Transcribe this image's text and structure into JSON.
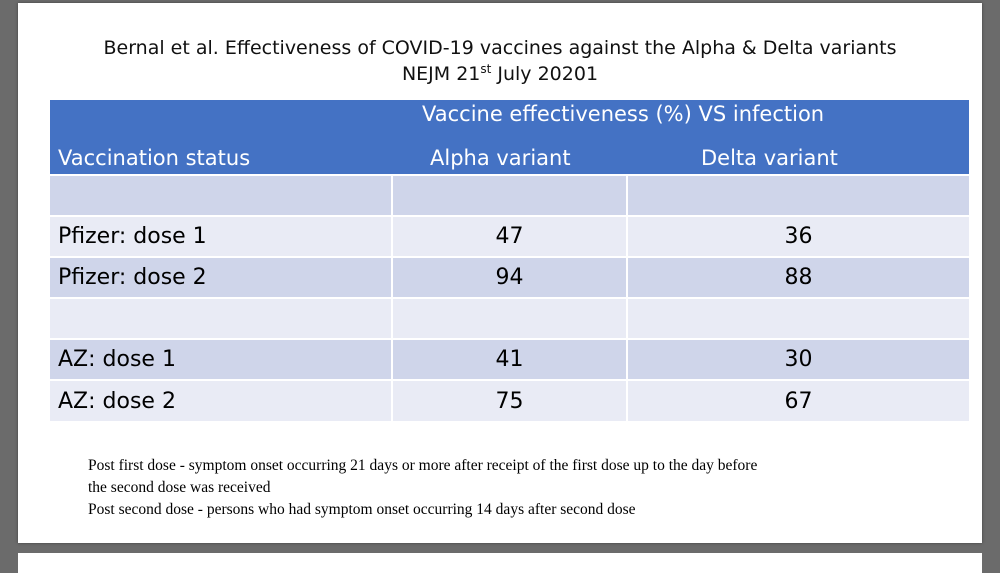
{
  "title": {
    "line1": "Bernal et al. Effectiveness of COVID-19 vaccines against the Alpha & Delta variants",
    "line2_prefix": "NEJM 21",
    "line2_sup": "st",
    "line2_suffix": " July 20201"
  },
  "table": {
    "header": {
      "status": "Vaccination status",
      "span": "Vaccine effectiveness (%) VS infection",
      "alpha": "Alpha variant",
      "delta": "Delta variant"
    },
    "rows": [
      {
        "status": "",
        "alpha": "",
        "delta": ""
      },
      {
        "status": "Pfizer: dose 1",
        "alpha": "47",
        "delta": "36"
      },
      {
        "status": "Pfizer: dose 2",
        "alpha": "94",
        "delta": "88"
      },
      {
        "status": "",
        "alpha": "",
        "delta": ""
      },
      {
        "status": "AZ: dose 1",
        "alpha": "41",
        "delta": "30"
      },
      {
        "status": "AZ: dose 2",
        "alpha": "75",
        "delta": "67"
      }
    ]
  },
  "notes": {
    "line1": "Post first dose - symptom onset occurring 21 days or more after receipt of the first dose up to the day before",
    "line2": "the second dose was received",
    "line3": "Post second dose - persons who had symptom onset occurring 14 days after second dose"
  },
  "colors": {
    "header_bg": "#4472c4",
    "row_odd": "#cfd5ea",
    "row_even": "#e9ebf5",
    "viewer_bg": "#6b6b6b"
  }
}
